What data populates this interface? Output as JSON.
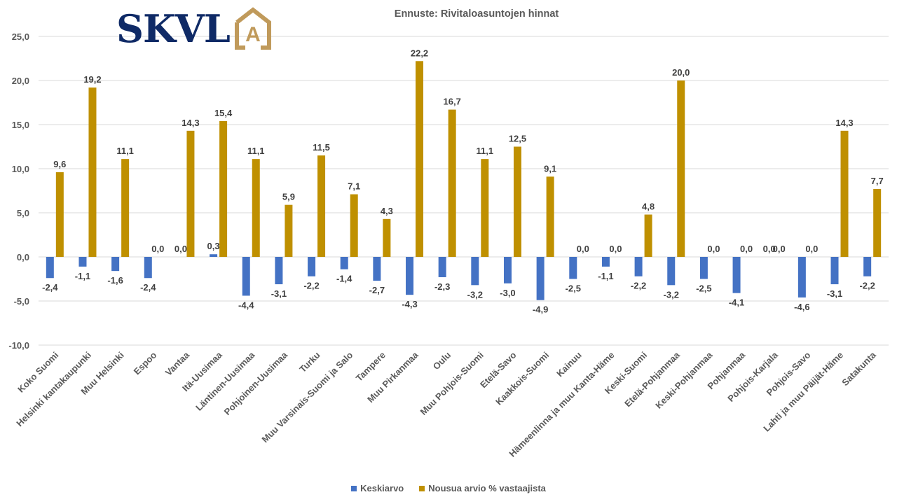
{
  "brand": {
    "logo_text": "SKVL",
    "logo_mark": "A"
  },
  "chart_data": {
    "type": "bar",
    "title": "Ennuste: Rivitaloasuntojen hinnat",
    "xlabel": "",
    "ylabel": "",
    "ylim": [
      -10,
      25
    ],
    "yticks": [
      25,
      20,
      15,
      10,
      5,
      0,
      -5,
      -10
    ],
    "ytick_labels": [
      "25,0",
      "20,0",
      "15,0",
      "10,0",
      "5,0",
      "0,0",
      "-5,0",
      "-10,0"
    ],
    "grid": true,
    "legend_position": "bottom",
    "categories": [
      "Koko Suomi",
      "Helsinki kantakaupunki",
      "Muu Helsinki",
      "Espoo",
      "Vantaa",
      "Itä-Uusimaa",
      "Läntinen-Uusimaa",
      "Pohjoinen-Uusimaa",
      "Turku",
      "Muu Varsinais-Suomi ja Salo",
      "Tampere",
      "Muu Pirkanmaa",
      "Oulu",
      "Muu Pohjois-Suomi",
      "Etelä-Savo",
      "Kaakkois-Suomi",
      "Kainuu",
      "Hämeenlinna ja muu Kanta-Häme",
      "Keski-Suomi",
      "Etelä-Pohjanmaa",
      "Keski-Pohjanmaa",
      "Pohjanmaa",
      "Pohjois-Karjala",
      "Pohjois-Savo",
      "Lahti ja muu Päijät-Häme",
      "Satakunta"
    ],
    "series": [
      {
        "name": "Keskiarvo",
        "color": "#4472c4",
        "values": [
          -2.4,
          -1.1,
          -1.6,
          -2.4,
          0.0,
          0.3,
          -4.4,
          -3.1,
          -2.2,
          -1.4,
          -2.7,
          -4.3,
          -2.3,
          -3.2,
          -3.0,
          -4.9,
          -2.5,
          -1.1,
          -2.2,
          -3.2,
          -2.5,
          -4.1,
          0.0,
          -4.6,
          -3.1,
          -2.2
        ],
        "labels": [
          "-2,4",
          "-1,1",
          "-1,6",
          "-2,4",
          "0,0",
          "0,3",
          "-4,4",
          "-3,1",
          "-2,2",
          "-1,4",
          "-2,7",
          "-4,3",
          "-2,3",
          "-3,2",
          "-3,0",
          "-4,9",
          "-2,5",
          "-1,1",
          "-2,2",
          "-3,2",
          "-2,5",
          "-4,1",
          "0,0",
          "-4,6",
          "-3,1",
          "-2,2"
        ]
      },
      {
        "name": "Nousua arvio % vastaajista",
        "color": "#bf9000",
        "values": [
          9.6,
          19.2,
          11.1,
          0.0,
          14.3,
          15.4,
          11.1,
          5.9,
          11.5,
          7.1,
          4.3,
          22.2,
          16.7,
          11.1,
          12.5,
          9.1,
          0.0,
          0.0,
          4.8,
          20.0,
          0.0,
          0.0,
          0.0,
          0.0,
          14.3,
          7.7
        ],
        "labels": [
          "9,6",
          "19,2",
          "11,1",
          "0,0",
          "14,3",
          "15,4",
          "11,1",
          "5,9",
          "11,5",
          "7,1",
          "4,3",
          "22,2",
          "16,7",
          "11,1",
          "12,5",
          "9,1",
          "0,0",
          "0,0",
          "4,8",
          "20,0",
          "0,0",
          "0,0",
          "0,0",
          "0,0",
          "14,3",
          "7,7"
        ]
      }
    ]
  }
}
